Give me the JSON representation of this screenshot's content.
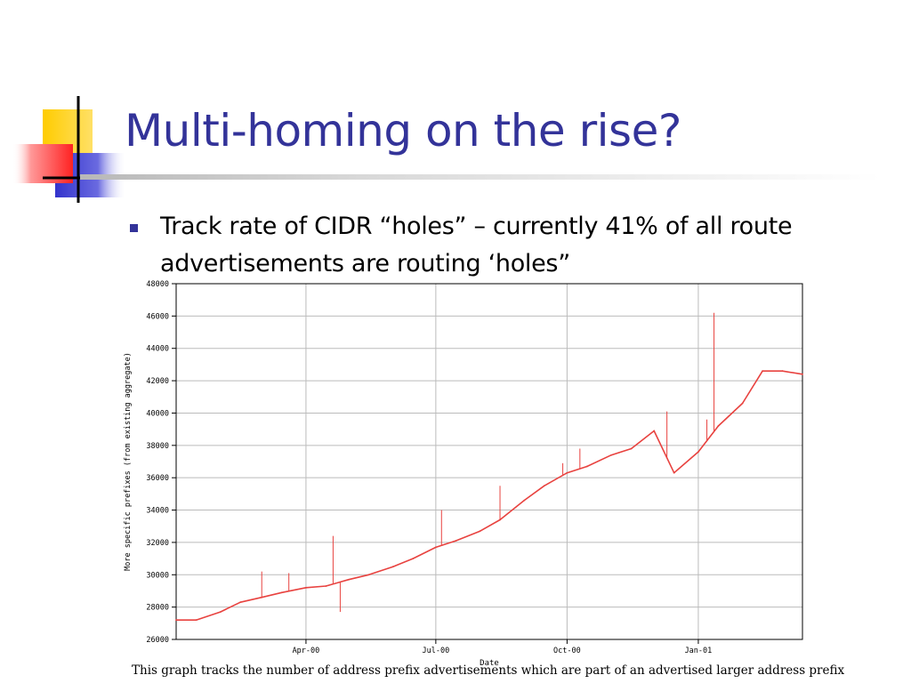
{
  "slide": {
    "title": "Multi-homing on the rise?",
    "bullet": "Track rate of CIDR “holes” – currently 41% of all route advertisements are routing ‘holes”",
    "caption": "This graph tracks the number of address prefix advertisements which are part of an advertised larger address prefix"
  },
  "colors": {
    "title": "#333399",
    "bullet_marker": "#333399",
    "series": "#e8423f",
    "grid": "#bbbbbb",
    "deco_yellow": "#ffcc00",
    "deco_blue": "#3333cc",
    "deco_red": "#ff3333"
  },
  "chart_data": {
    "type": "line",
    "xlabel": "Date",
    "ylabel": "More specific prefixes (from existing aggregate)",
    "ylim": [
      26000,
      48000
    ],
    "yticks": [
      26000,
      28000,
      30000,
      32000,
      34000,
      36000,
      38000,
      40000,
      42000,
      44000,
      46000,
      48000
    ],
    "ytick_labels": [
      "26000",
      "28000",
      "30000",
      "32000",
      "34000",
      "36000",
      "38000",
      "40000",
      "42000",
      "44000",
      "46000",
      "48000"
    ],
    "xlim": [
      "2000-01-01",
      "2001-03-15"
    ],
    "xticks": [
      "2000-04-01",
      "2000-07-01",
      "2000-10-01",
      "2001-01-01"
    ],
    "xtick_labels": [
      "Apr-00",
      "Jul-00",
      "Oct-00",
      "Jan-01"
    ],
    "grid": true,
    "series": [
      {
        "x": [
          "2000-01-01",
          "2000-01-15",
          "2000-02-01",
          "2000-02-15",
          "2000-03-01",
          "2000-03-15",
          "2000-04-01",
          "2000-04-15",
          "2000-05-01",
          "2000-05-15",
          "2000-06-01",
          "2000-06-15",
          "2000-07-01",
          "2000-07-15",
          "2000-08-01",
          "2000-08-15",
          "2000-09-01",
          "2000-09-15",
          "2000-10-01",
          "2000-10-15",
          "2000-11-01",
          "2000-11-15",
          "2000-12-01",
          "2000-12-15",
          "2001-01-01",
          "2001-01-15",
          "2001-02-01",
          "2001-02-15",
          "2001-03-01",
          "2001-03-15"
        ],
        "y": [
          27200,
          27200,
          27700,
          28300,
          28600,
          28900,
          29200,
          29300,
          29700,
          30000,
          30500,
          31000,
          31700,
          32100,
          32700,
          33400,
          34600,
          35500,
          36300,
          36700,
          37400,
          37800,
          38900,
          36300,
          37600,
          39200,
          40600,
          42600,
          42600,
          42400
        ]
      }
    ],
    "spikes": [
      {
        "x": "2000-03-01",
        "y": 30200
      },
      {
        "x": "2000-03-20",
        "y": 30100
      },
      {
        "x": "2000-04-20",
        "y": 32400
      },
      {
        "x": "2000-04-25",
        "y": 27700
      },
      {
        "x": "2000-07-05",
        "y": 34000
      },
      {
        "x": "2000-08-15",
        "y": 35500
      },
      {
        "x": "2000-09-28",
        "y": 36900
      },
      {
        "x": "2000-10-10",
        "y": 37800
      },
      {
        "x": "2000-12-10",
        "y": 40100
      },
      {
        "x": "2001-01-07",
        "y": 39600
      },
      {
        "x": "2001-01-12",
        "y": 46200
      }
    ]
  }
}
